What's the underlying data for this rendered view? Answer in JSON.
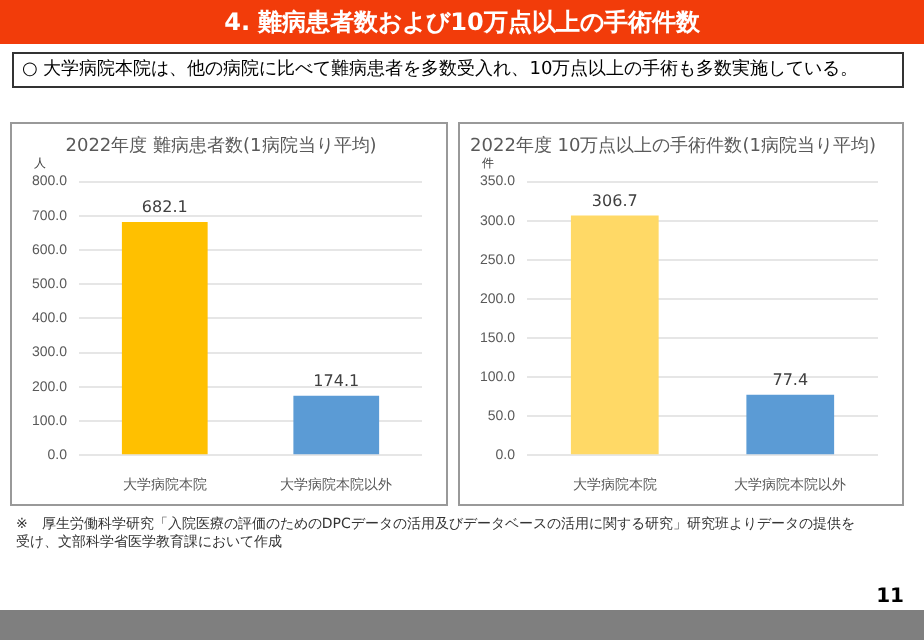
{
  "chart_data": [
    {
      "type": "bar",
      "title": "2022年度 難病患者数(1病院当り平均)",
      "ylabel": "人",
      "categories": [
        "大学病院本院",
        "大学病院本院以外"
      ],
      "values": [
        682.1,
        174.1
      ],
      "colors": [
        "#ffc000",
        "#5b9bd5"
      ],
      "ylim": [
        0,
        800
      ],
      "yticks": [
        {
          "value": 0,
          "label": "0.0"
        },
        {
          "value": 100,
          "label": "100.0"
        },
        {
          "value": 200,
          "label": "200.0"
        },
        {
          "value": 300,
          "label": "300.0"
        },
        {
          "value": 400,
          "label": "400.0"
        },
        {
          "value": 500,
          "label": "500.0"
        },
        {
          "value": 600,
          "label": "600.0"
        },
        {
          "value": 700,
          "label": "700.0"
        },
        {
          "value": 800,
          "label": "800.0"
        }
      ],
      "grid": "y",
      "data_labels": true,
      "annotations": [
        "4. 難病患者数および10万点以上の手術件数",
        "○ 大学病院本院は、他の病院に比べて難病患者を多数受入れ、10万点以上の手術も多数実施している。",
        "※　厚生労働科学研究「入院医療の評価のためのDPCデータの活用及びデータベースの活用に関する研究」研究班よりデータの提供を受け、文部科学省医学教育課において作成",
        "11"
      ]
    },
    {
      "type": "bar",
      "title": "2022年度 10万点以上の手術件数(1病院当り平均)",
      "ylabel": "件",
      "categories": [
        "大学病院本院",
        "大学病院本院以外"
      ],
      "values": [
        306.7,
        77.4
      ],
      "colors": [
        "#ffd966",
        "#5b9bd5"
      ],
      "ylim": [
        0,
        350
      ],
      "yticks": [
        {
          "value": 0,
          "label": "0.0"
        },
        {
          "value": 50,
          "label": "50.0"
        },
        {
          "value": 100,
          "label": "100.0"
        },
        {
          "value": 150,
          "label": "150.0"
        },
        {
          "value": 200,
          "label": "200.0"
        },
        {
          "value": 250,
          "label": "250.0"
        },
        {
          "value": 300,
          "label": "300.0"
        },
        {
          "value": 350,
          "label": "350.0"
        }
      ],
      "grid": "y",
      "data_labels": true
    }
  ]
}
